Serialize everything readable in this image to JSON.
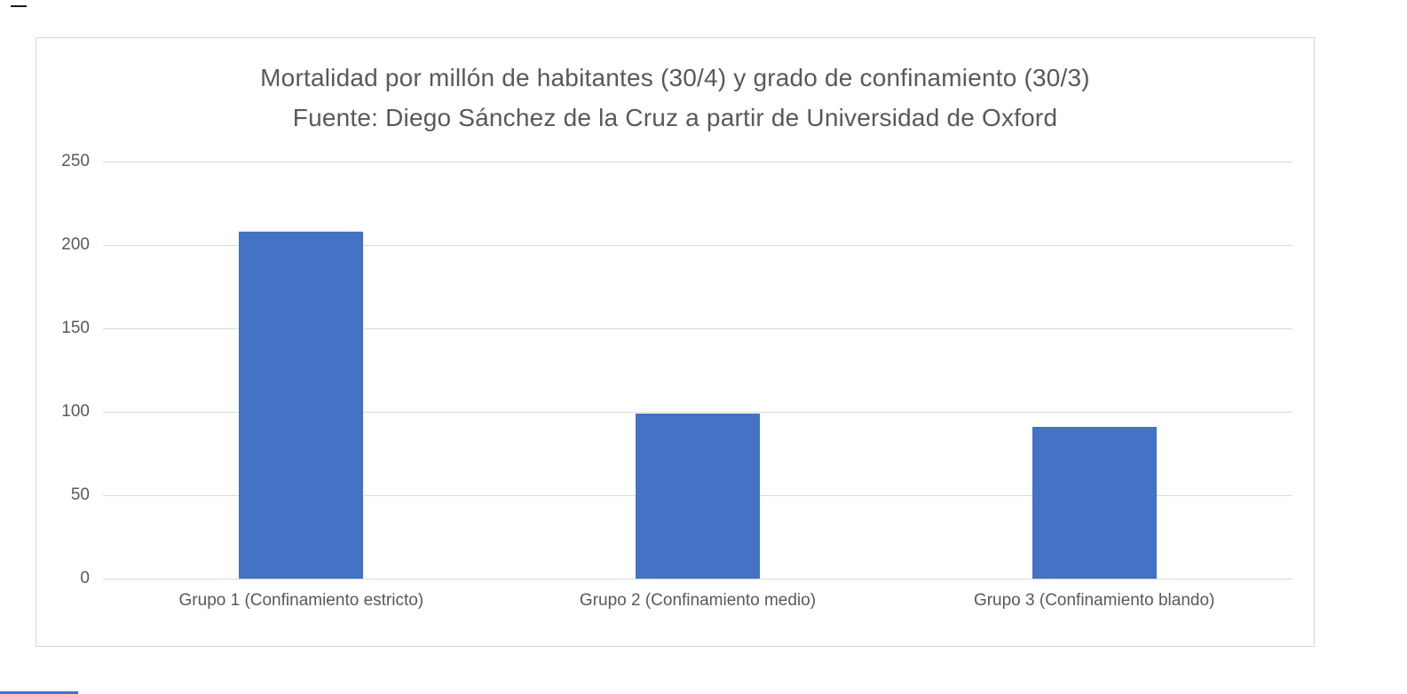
{
  "chart_data": {
    "type": "bar",
    "categories": [
      "Grupo 1 (Confinamiento estricto)",
      "Grupo 2 (Confinamiento medio)",
      "Grupo 3 (Confinamiento blando)"
    ],
    "values": [
      208,
      99,
      91
    ],
    "title": "Mortalidad por millón de habitantes (30/4) y grado de confinamiento (30/3)",
    "subtitle": "Fuente: Diego Sánchez de la Cruz a partir de Universidad de Oxford",
    "xlabel": "",
    "ylabel": "",
    "ylim": [
      0,
      250
    ],
    "ytick_step": 50,
    "ytick_labels": [
      "0",
      "50",
      "100",
      "150",
      "200",
      "250"
    ],
    "grid": true,
    "legend": false,
    "legend_position": "none",
    "bar_color": "#4472C4",
    "gridline_color": "#D9D9D9",
    "text_color": "#595959",
    "plot_background": "#FFFFFF",
    "border_color": "#D6D6D6"
  },
  "page": {
    "top_dash_color": "#1A1A1A",
    "bottom_strip_color": "#4472C4"
  }
}
